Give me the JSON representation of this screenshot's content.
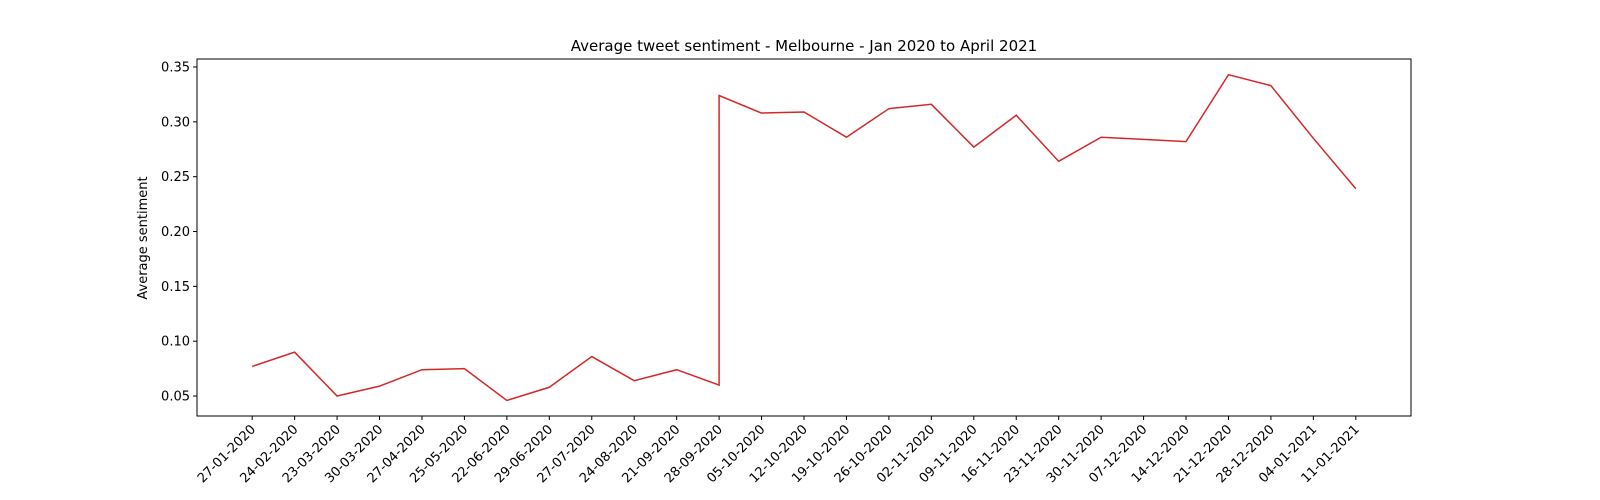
{
  "chart_data": {
    "type": "line",
    "title": "Average tweet sentiment - Melbourne - Jan 2020 to April 2021",
    "y_label": "Average sentiment",
    "x": [
      0,
      1,
      2,
      3,
      4,
      5,
      6,
      7,
      8,
      9,
      10,
      11,
      11,
      12,
      13,
      14,
      15,
      16,
      17,
      18,
      19,
      20,
      21,
      22,
      23,
      24,
      25,
      26
    ],
    "series": [
      {
        "name": "Average sentiment",
        "color": "#d62728",
        "values": [
          0.077,
          0.09,
          0.05,
          0.059,
          0.074,
          0.075,
          0.046,
          0.058,
          0.086,
          0.064,
          0.074,
          0.06,
          0.324,
          0.308,
          0.309,
          0.286,
          0.312,
          0.316,
          0.277,
          0.306,
          0.264,
          0.286,
          0.284,
          0.282,
          0.343,
          0.333,
          0.285,
          0.239
        ]
      }
    ],
    "xlim": [
      -1.3,
      27.3
    ],
    "xticks": [
      {
        "value": 0,
        "label": "27-01-2020"
      },
      {
        "value": 1,
        "label": "24-02-2020"
      },
      {
        "value": 2,
        "label": "23-03-2020"
      },
      {
        "value": 3,
        "label": "30-03-2020"
      },
      {
        "value": 4,
        "label": "27-04-2020"
      },
      {
        "value": 5,
        "label": "25-05-2020"
      },
      {
        "value": 6,
        "label": "22-06-2020"
      },
      {
        "value": 7,
        "label": "29-06-2020"
      },
      {
        "value": 8,
        "label": "27-07-2020"
      },
      {
        "value": 9,
        "label": "24-08-2020"
      },
      {
        "value": 10,
        "label": "21-09-2020"
      },
      {
        "value": 11,
        "label": "28-09-2020"
      },
      {
        "value": 12,
        "label": "05-10-2020"
      },
      {
        "value": 13,
        "label": "12-10-2020"
      },
      {
        "value": 14,
        "label": "19-10-2020"
      },
      {
        "value": 15,
        "label": "26-10-2020"
      },
      {
        "value": 16,
        "label": "02-11-2020"
      },
      {
        "value": 17,
        "label": "09-11-2020"
      },
      {
        "value": 18,
        "label": "16-11-2020"
      },
      {
        "value": 19,
        "label": "23-11-2020"
      },
      {
        "value": 20,
        "label": "30-11-2020"
      },
      {
        "value": 21,
        "label": "07-12-2020"
      },
      {
        "value": 22,
        "label": "14-12-2020"
      },
      {
        "value": 23,
        "label": "21-12-2020"
      },
      {
        "value": 24,
        "label": "28-12-2020"
      },
      {
        "value": 25,
        "label": "04-01-2021"
      },
      {
        "value": 26,
        "label": "11-01-2021"
      }
    ],
    "ylim": [
      0.0318,
      0.3573
    ],
    "yticks": [
      {
        "value": 0.05,
        "label": "0.05"
      },
      {
        "value": 0.1,
        "label": "0.10"
      },
      {
        "value": 0.15,
        "label": "0.15"
      },
      {
        "value": 0.2,
        "label": "0.20"
      },
      {
        "value": 0.25,
        "label": "0.25"
      },
      {
        "value": 0.3,
        "label": "0.30"
      },
      {
        "value": 0.35,
        "label": "0.35"
      }
    ],
    "grid": false
  }
}
